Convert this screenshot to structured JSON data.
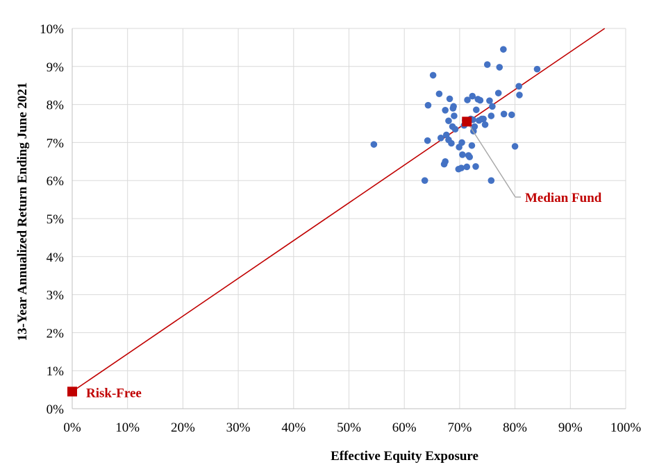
{
  "chart_data": {
    "type": "scatter",
    "xlabel": "Effective Equity Exposure",
    "ylabel": "13-Year Annualized Return Ending June 2021",
    "xlim": [
      0,
      100
    ],
    "ylim": [
      0,
      10
    ],
    "xticks": [
      "0%",
      "10%",
      "20%",
      "30%",
      "40%",
      "50%",
      "60%",
      "70%",
      "80%",
      "90%",
      "100%"
    ],
    "yticks": [
      "0%",
      "1%",
      "2%",
      "3%",
      "4%",
      "5%",
      "6%",
      "7%",
      "8%",
      "9%",
      "10%"
    ],
    "grid": true,
    "colors": {
      "points": "#4472c4",
      "line": "#c00000",
      "highlight": "#c00000",
      "grid": "#d9d9d9",
      "leader": "#a6a6a6"
    },
    "series": [
      {
        "type": "scatter",
        "points": [
          [
            54.5,
            6.95
          ],
          [
            63.7,
            6.0
          ],
          [
            64.2,
            7.05
          ],
          [
            64.3,
            7.98
          ],
          [
            65.2,
            8.77
          ],
          [
            66.3,
            8.28
          ],
          [
            66.6,
            7.12
          ],
          [
            67.2,
            6.43
          ],
          [
            67.4,
            6.5
          ],
          [
            67.4,
            7.85
          ],
          [
            67.6,
            7.2
          ],
          [
            68.0,
            7.07
          ],
          [
            68.0,
            7.57
          ],
          [
            68.2,
            8.15
          ],
          [
            68.5,
            6.98
          ],
          [
            68.7,
            7.42
          ],
          [
            68.8,
            7.9
          ],
          [
            68.9,
            7.95
          ],
          [
            69.0,
            7.7
          ],
          [
            69.2,
            7.35
          ],
          [
            69.8,
            6.3
          ],
          [
            69.9,
            6.88
          ],
          [
            70.3,
            6.33
          ],
          [
            70.4,
            7.0
          ],
          [
            70.5,
            6.68
          ],
          [
            70.8,
            7.45
          ],
          [
            71.0,
            7.58
          ],
          [
            71.3,
            6.36
          ],
          [
            71.4,
            8.12
          ],
          [
            71.6,
            6.66
          ],
          [
            71.8,
            6.62
          ],
          [
            72.0,
            7.62
          ],
          [
            72.2,
            6.92
          ],
          [
            72.3,
            8.22
          ],
          [
            72.4,
            7.6
          ],
          [
            72.5,
            7.3
          ],
          [
            72.7,
            7.42
          ],
          [
            72.9,
            6.37
          ],
          [
            73.0,
            7.86
          ],
          [
            73.3,
            8.14
          ],
          [
            73.5,
            7.58
          ],
          [
            73.7,
            8.11
          ],
          [
            74.0,
            7.62
          ],
          [
            74.3,
            7.62
          ],
          [
            74.6,
            7.47
          ],
          [
            75.0,
            9.05
          ],
          [
            75.4,
            8.1
          ],
          [
            75.7,
            7.7
          ],
          [
            75.7,
            6.0
          ],
          [
            75.9,
            7.95
          ],
          [
            77.0,
            8.3
          ],
          [
            77.2,
            8.98
          ],
          [
            77.9,
            9.45
          ],
          [
            78.0,
            7.75
          ],
          [
            79.4,
            7.73
          ],
          [
            80.0,
            6.9
          ],
          [
            80.7,
            8.48
          ],
          [
            80.8,
            8.25
          ],
          [
            84.0,
            8.93
          ]
        ]
      },
      {
        "type": "line",
        "points": [
          [
            0,
            0.45
          ],
          [
            96.2,
            10.0
          ]
        ]
      }
    ],
    "annotations": [
      {
        "label": "Risk-Free",
        "x": 0,
        "y": 0.45
      },
      {
        "label": "Median Fund",
        "x": 71.3,
        "y": 7.55
      }
    ]
  }
}
